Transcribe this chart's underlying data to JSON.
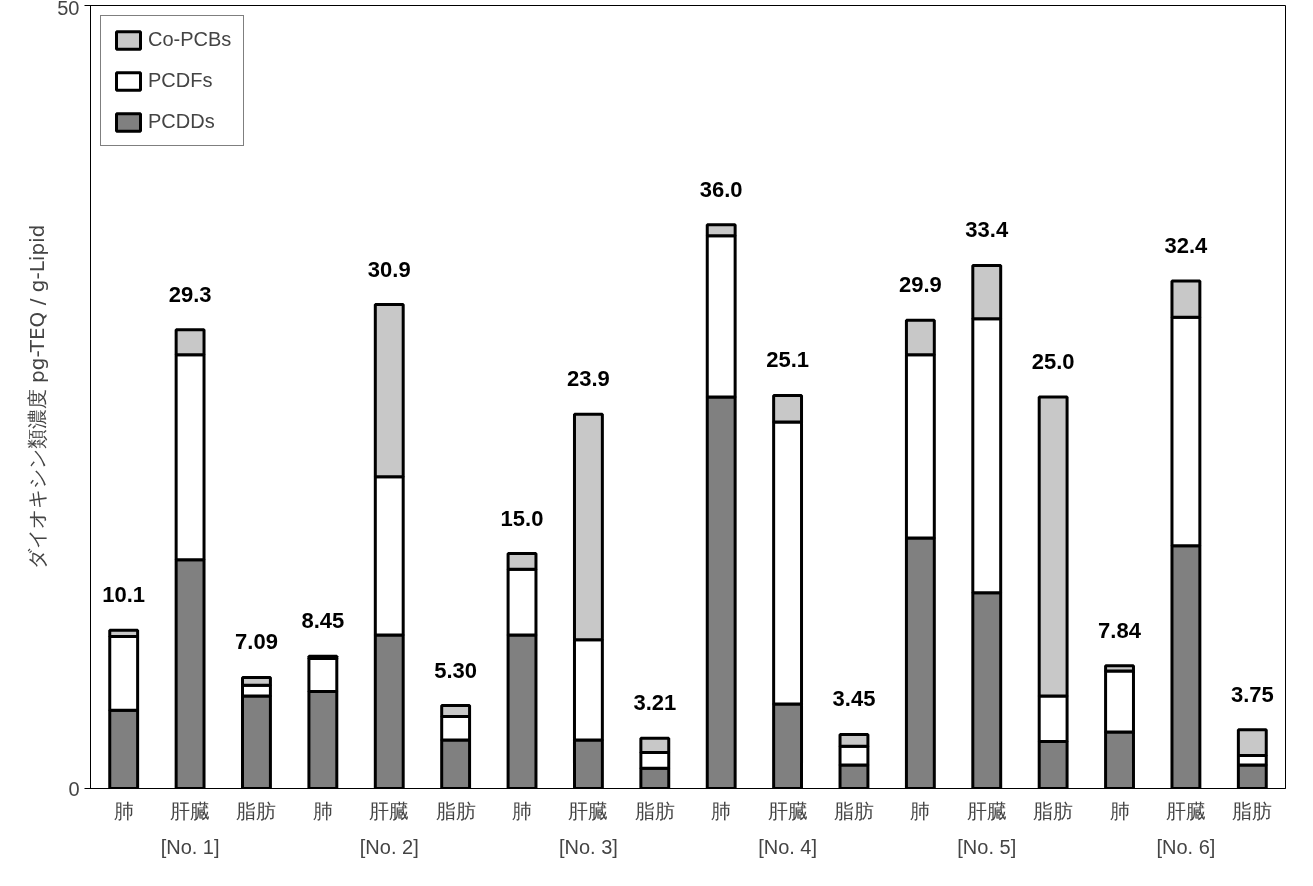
{
  "chart_data": {
    "type": "bar",
    "stacked": true,
    "ylabel": "ダイオキシン類濃度 pg-TEQ / g-Lipid",
    "categories": [
      "肺",
      "肝臓",
      "脂肪",
      "肺",
      "肝臓",
      "脂肪",
      "肺",
      "肝臓",
      "脂肪",
      "肺",
      "肝臓",
      "脂肪",
      "肺",
      "肝臓",
      "脂肪",
      "肺",
      "肝臓",
      "脂肪"
    ],
    "series": [
      {
        "name": "PCDDs",
        "color": "#808080",
        "values": [
          5.0,
          14.6,
          5.9,
          6.2,
          9.8,
          3.1,
          9.8,
          3.1,
          1.3,
          25.0,
          5.4,
          1.5,
          16.0,
          12.5,
          3.0,
          3.6,
          15.5,
          1.5
        ]
      },
      {
        "name": "PCDFs",
        "color": "#ffffff",
        "values": [
          4.7,
          13.1,
          0.7,
          2.1,
          10.1,
          1.5,
          4.2,
          6.4,
          1.0,
          10.3,
          18.0,
          1.2,
          11.7,
          17.5,
          2.9,
          3.9,
          14.6,
          0.6
        ]
      },
      {
        "name": "Co-PCBs",
        "color": "#c8c8c8",
        "values": [
          0.4,
          1.6,
          0.49,
          0.15,
          11.0,
          0.7,
          1.0,
          14.4,
          0.91,
          0.7,
          1.7,
          0.75,
          2.2,
          3.4,
          19.1,
          0.34,
          2.3,
          1.65
        ]
      }
    ],
    "totals": [
      "10.1",
      "29.3",
      "7.09",
      "8.45",
      "30.9",
      "5.30",
      "15.0",
      "23.9",
      "3.21",
      "36.0",
      "25.1",
      "3.45",
      "29.9",
      "33.4",
      "25.0",
      "7.84",
      "32.4",
      "3.75"
    ],
    "annotations": [
      "[No. 1]",
      "[No. 2]",
      "[No. 3]",
      "[No. 4]",
      "[No. 5]",
      "[No. 6]"
    ],
    "ylim": [
      0,
      50
    ],
    "yticks": [
      0,
      50
    ],
    "grid": false,
    "legend": "top left"
  }
}
